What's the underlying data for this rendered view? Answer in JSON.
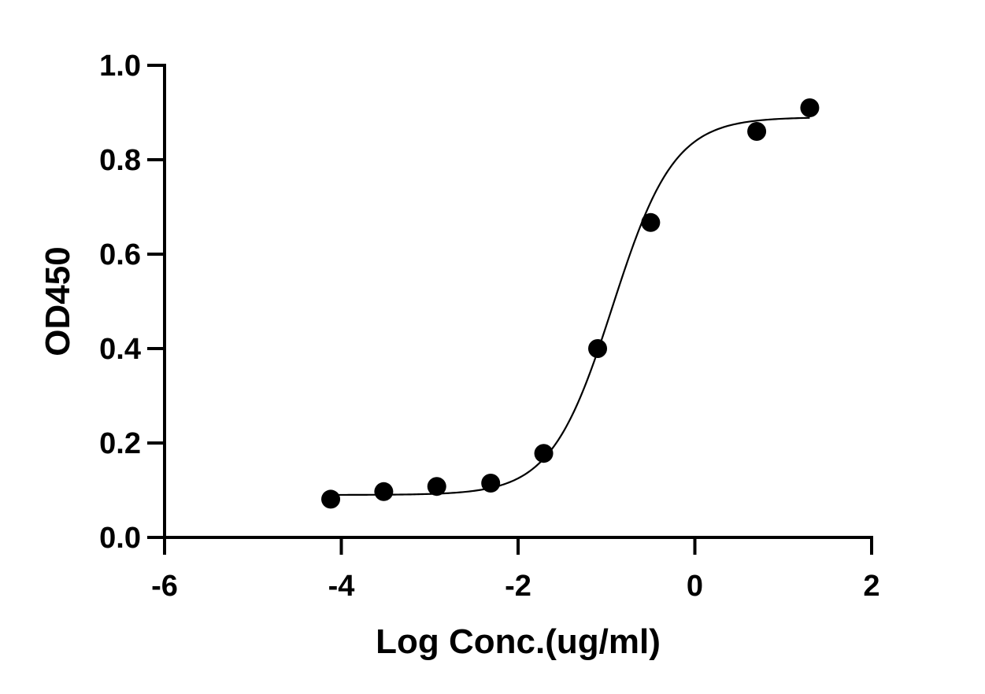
{
  "chart_data": {
    "type": "scatter",
    "title": "",
    "xlabel": "Log Conc.(ug/ml)",
    "ylabel": "OD450",
    "xlim": [
      -6,
      2
    ],
    "ylim": [
      0,
      1.0
    ],
    "x_ticks": [
      -6,
      -4,
      -2,
      0,
      2
    ],
    "x_tick_labels": [
      "-6",
      "-4",
      "-2",
      "0",
      "2"
    ],
    "y_ticks": [
      0,
      0.2,
      0.4,
      0.6,
      0.8,
      1.0
    ],
    "y_tick_labels": [
      "0.0",
      "0.2",
      "0.4",
      "0.6",
      "0.8",
      "1.0"
    ],
    "grid": false,
    "series": [
      {
        "x": [
          -4.12,
          -3.52,
          -2.92,
          -2.31,
          -1.71,
          -1.1,
          -0.5,
          0.7,
          1.3
        ],
        "y": [
          0.081,
          0.097,
          0.108,
          0.115,
          0.178,
          0.4,
          0.667,
          0.86,
          0.91
        ]
      }
    ],
    "fit_curve": {
      "model": "4PL",
      "bottom": 0.09,
      "top": 0.89,
      "log_ec50": -0.93,
      "hill_slope": 1.25,
      "x_range": [
        -4.12,
        1.3
      ]
    },
    "marker_color": "#000000",
    "line_color": "#000000"
  }
}
